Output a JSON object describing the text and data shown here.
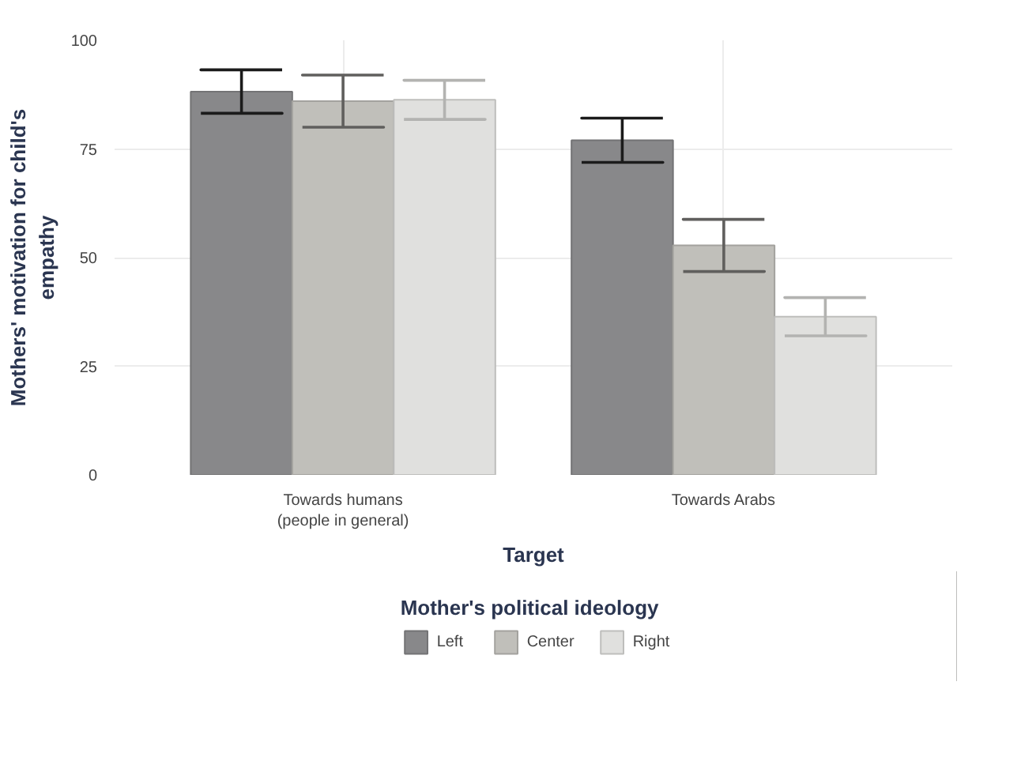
{
  "chart_data": {
    "type": "bar",
    "xlabel": "Target",
    "ylabel": "Mothers' motivation for child's\nempathy",
    "legend_title": "Mother's political ideology",
    "categories": [
      "Towards humans\n(people in general)",
      "Towards Arabs"
    ],
    "series": [
      {
        "name": "Left",
        "color": "#88888a",
        "values": [
          88.2,
          77.0
        ],
        "errors": [
          5.0,
          5.1
        ]
      },
      {
        "name": "Center",
        "color": "#c0bfba",
        "values": [
          86.0,
          52.8
        ],
        "errors": [
          6.0,
          6.0
        ]
      },
      {
        "name": "Right",
        "color": "#e0e0de",
        "values": [
          86.3,
          36.4
        ],
        "errors": [
          4.5,
          4.4
        ]
      }
    ],
    "ylim": [
      0,
      100
    ],
    "yticks": [
      0,
      25,
      50,
      75,
      100
    ],
    "grid": true,
    "legend": "bottom"
  }
}
